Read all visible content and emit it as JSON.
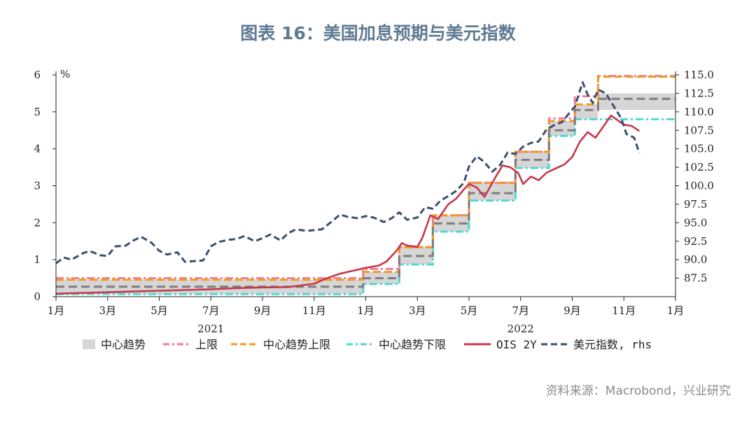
{
  "title": "图表 16：美国加息预期与美元指数",
  "source": "资料来源：Macrobond，兴业研究",
  "colors": {
    "title": "#5f7a93",
    "band": "#d6d6d6",
    "upper": "#f3799e",
    "trend_upper": "#f29a1f",
    "trend_lower": "#4fd8d4",
    "ois": "#c8374a",
    "dxy": "#3a4f6b",
    "trend_center": "#7d7d7d"
  },
  "chart_data": {
    "type": "line",
    "left_axis": {
      "unit": "%",
      "ylim": [
        0,
        6
      ],
      "ticks": [
        "0",
        "1",
        "2",
        "3",
        "4",
        "5",
        "6"
      ]
    },
    "right_axis": {
      "ylim": [
        85.0,
        115.0
      ],
      "ticks": [
        "87.5",
        "90.0",
        "92.5",
        "95.0",
        "97.5",
        "100.0",
        "102.5",
        "105.0",
        "107.5",
        "110.0",
        "112.5",
        "115.0"
      ]
    },
    "x_axis": {
      "range": [
        0,
        24
      ],
      "ticks": [
        "1月",
        "3月",
        "5月",
        "7月",
        "9月",
        "11月",
        "1月",
        "3月",
        "5月",
        "7月",
        "9月",
        "11月",
        "1月"
      ],
      "years": [
        {
          "label": "2021",
          "x": 6
        },
        {
          "label": "2022",
          "x": 18
        }
      ]
    },
    "legend": [
      "中心趋势",
      "上限",
      "中心趋势上限",
      "中心趋势下限",
      "OIS 2Y",
      "美元指数, rhs"
    ],
    "steps": [
      {
        "x0": 0,
        "x1": 11.9,
        "upper": 0.5,
        "trend_upper": 0.46,
        "center": 0.27,
        "trend_lower": 0.07
      },
      {
        "x0": 11.9,
        "x1": 13.3,
        "upper": 0.75,
        "trend_upper": 0.67,
        "center": 0.5,
        "trend_lower": 0.34
      },
      {
        "x0": 13.3,
        "x1": 14.6,
        "upper": 1.34,
        "trend_upper": 1.34,
        "center": 1.1,
        "trend_lower": 0.87
      },
      {
        "x0": 14.6,
        "x1": 16.0,
        "upper": 2.2,
        "trend_upper": 2.2,
        "center": 1.98,
        "trend_lower": 1.76
      },
      {
        "x0": 16.0,
        "x1": 17.8,
        "upper": 3.08,
        "trend_upper": 3.08,
        "center": 2.8,
        "trend_lower": 2.6
      },
      {
        "x0": 17.8,
        "x1": 19.1,
        "upper": 3.92,
        "trend_upper": 3.92,
        "center": 3.7,
        "trend_lower": 3.48
      },
      {
        "x0": 19.1,
        "x1": 20.1,
        "upper": 4.82,
        "trend_upper": 4.75,
        "center": 4.5,
        "trend_lower": 4.35
      },
      {
        "x0": 20.1,
        "x1": 21.0,
        "upper": 5.42,
        "trend_upper": 5.2,
        "center": 5.05,
        "trend_lower": 4.8
      },
      {
        "x0": 21.0,
        "x1": 24.0,
        "upper": 5.97,
        "trend_upper": 5.95,
        "center": 5.35,
        "trend_lower": 4.8,
        "band_low": 5.05,
        "band_high": 5.5
      }
    ],
    "ois_2y": {
      "x": [
        0,
        0.5,
        1,
        2,
        3,
        4,
        5,
        6,
        7,
        8,
        9,
        10,
        10.5,
        11,
        11.5,
        12,
        12.5,
        12.8,
        13.2,
        13.4,
        13.6,
        14,
        14.2,
        14.5,
        14.8,
        15,
        15.2,
        15.5,
        15.8,
        16,
        16.3,
        16.6,
        17,
        17.3,
        17.6,
        17.9,
        18.1,
        18.4,
        18.7,
        19,
        19.3,
        19.7,
        20,
        20.3,
        20.6,
        20.9,
        21.2,
        21.5,
        21.8,
        22,
        22.3,
        22.6
      ],
      "y": [
        0.08,
        0.09,
        0.1,
        0.12,
        0.14,
        0.16,
        0.18,
        0.2,
        0.23,
        0.25,
        0.26,
        0.35,
        0.5,
        0.62,
        0.7,
        0.78,
        0.84,
        0.95,
        1.25,
        1.45,
        1.38,
        1.35,
        1.6,
        2.2,
        2.1,
        2.3,
        2.5,
        2.65,
        2.9,
        3.05,
        2.95,
        2.7,
        3.2,
        3.55,
        3.5,
        3.35,
        3.05,
        3.25,
        3.15,
        3.35,
        3.45,
        3.58,
        3.78,
        4.2,
        4.45,
        4.3,
        4.6,
        4.9,
        4.75,
        4.65,
        4.62,
        4.48
      ]
    },
    "dxy": {
      "x": [
        0,
        0.3,
        0.6,
        1,
        1.3,
        1.7,
        2,
        2.3,
        2.7,
        3,
        3.3,
        3.7,
        4,
        4.3,
        4.7,
        5,
        5.3,
        5.7,
        6,
        6.3,
        6.7,
        7,
        7.3,
        7.7,
        8,
        8.3,
        8.7,
        9,
        9.3,
        9.7,
        10,
        10.3,
        10.7,
        11,
        11.3,
        11.7,
        12,
        12.3,
        12.7,
        13,
        13.3,
        13.6,
        14,
        14.3,
        14.6,
        14.9,
        15.2,
        15.5,
        15.8,
        16,
        16.3,
        16.6,
        16.9,
        17.2,
        17.5,
        17.8,
        18.1,
        18.4,
        18.7,
        19,
        19.3,
        19.6,
        19.9,
        20.1,
        20.4,
        20.6,
        20.8,
        21,
        21.3,
        21.6,
        21.9,
        22.1,
        22.4,
        22.6
      ],
      "y": [
        89.5,
        90.3,
        90.0,
        90.8,
        91.2,
        90.6,
        90.5,
        91.8,
        91.9,
        92.6,
        93.1,
        92.3,
        91.2,
        90.7,
        91.0,
        89.7,
        89.8,
        89.9,
        91.8,
        92.4,
        92.7,
        92.8,
        93.2,
        92.5,
        92.9,
        93.4,
        92.6,
        93.6,
        94.1,
        93.9,
        94.0,
        94.1,
        95.2,
        96.1,
        95.8,
        95.6,
        95.9,
        95.7,
        95.1,
        95.6,
        96.4,
        95.4,
        95.7,
        97.1,
        96.9,
        98.0,
        98.6,
        99.3,
        100.4,
        102.6,
        104.0,
        103.2,
        101.9,
        102.8,
        104.5,
        104.3,
        105.3,
        105.8,
        106.0,
        107.6,
        108.2,
        108.6,
        109.9,
        110.7,
        114.0,
        112.3,
        111.2,
        113.0,
        112.5,
        110.8,
        109.1,
        107.0,
        106.5,
        104.4
      ]
    }
  }
}
